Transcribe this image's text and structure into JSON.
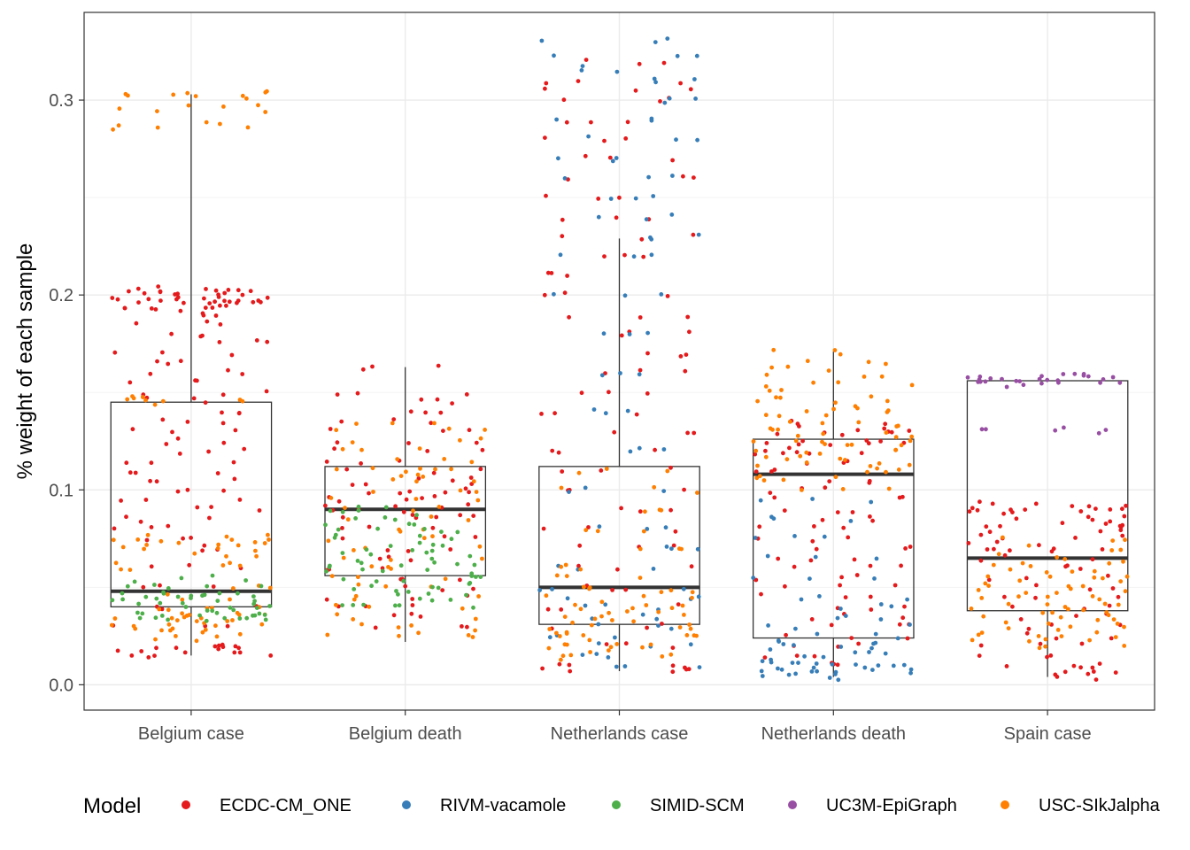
{
  "chart_data": {
    "type": "box-jitter",
    "ylabel": "% weight of each sample",
    "xlabel": "",
    "ylim": [
      -0.013,
      0.345
    ],
    "y_ticks": [
      0.0,
      0.1,
      0.2,
      0.3
    ],
    "y_tick_labels": [
      "0.0",
      "0.1",
      "0.2",
      "0.3"
    ],
    "grid": true,
    "categories": [
      "Belgium case",
      "Belgium death",
      "Netherlands case",
      "Netherlands death",
      "Spain case"
    ],
    "boxes": [
      {
        "category": "Belgium case",
        "min": 0.015,
        "q1": 0.04,
        "median": 0.048,
        "q3": 0.145,
        "max": 0.303
      },
      {
        "category": "Belgium death",
        "min": 0.022,
        "q1": 0.056,
        "median": 0.09,
        "q3": 0.112,
        "max": 0.163
      },
      {
        "category": "Netherlands case",
        "min": 0.007,
        "q1": 0.031,
        "median": 0.05,
        "q3": 0.112,
        "max": 0.229
      },
      {
        "category": "Netherlands death",
        "min": 0.004,
        "q1": 0.024,
        "median": 0.108,
        "q3": 0.126,
        "max": 0.171
      },
      {
        "category": "Spain case",
        "min": 0.004,
        "q1": 0.038,
        "median": 0.065,
        "q3": 0.156,
        "max": 0.156
      }
    ],
    "legend": {
      "title": "Model",
      "position": "bottom",
      "entries": [
        {
          "name": "ECDC-CM_ONE",
          "color": "#E41A1C"
        },
        {
          "name": "RIVM-vacamole",
          "color": "#377EB8"
        },
        {
          "name": "SIMID-SCM",
          "color": "#4DAF4A"
        },
        {
          "name": "UC3M-EpiGraph",
          "color": "#984EA3"
        },
        {
          "name": "USC-SIkJalpha",
          "color": "#FF7F00"
        }
      ]
    },
    "point_groups": [
      {
        "category": "Belgium case",
        "model": "ECDC-CM_ONE",
        "values": [
          0.19,
          0.192,
          0.194,
          0.195,
          0.196,
          0.197,
          0.198,
          0.199,
          0.2,
          0.201,
          0.202,
          0.203,
          0.193,
          0.196,
          0.199,
          0.201,
          0.186,
          0.18,
          0.176,
          0.17,
          0.165,
          0.16,
          0.155,
          0.15,
          0.146,
          0.14,
          0.135,
          0.13,
          0.125,
          0.12,
          0.115,
          0.11,
          0.105,
          0.1,
          0.095,
          0.09,
          0.085,
          0.08,
          0.075,
          0.07,
          0.06,
          0.05,
          0.04,
          0.03,
          0.02,
          0.016,
          0.018,
          0.015,
          0.017,
          0.019
        ]
      },
      {
        "category": "Belgium case",
        "model": "USC-SIkJalpha",
        "values": [
          0.304,
          0.303,
          0.302,
          0.296,
          0.295,
          0.288,
          0.286,
          0.147,
          0.145,
          0.146,
          0.076,
          0.075,
          0.074,
          0.073,
          0.072,
          0.07,
          0.066,
          0.062,
          0.06,
          0.05,
          0.045,
          0.04,
          0.038,
          0.036,
          0.035,
          0.034,
          0.033,
          0.032,
          0.031,
          0.03,
          0.028,
          0.026,
          0.024
        ]
      },
      {
        "category": "Belgium case",
        "model": "SIMID-SCM",
        "values": [
          0.055,
          0.052,
          0.05,
          0.048,
          0.046,
          0.045,
          0.044,
          0.043,
          0.042,
          0.041,
          0.04,
          0.039,
          0.038,
          0.037,
          0.036,
          0.035,
          0.034,
          0.033
        ]
      },
      {
        "category": "Belgium death",
        "model": "ECDC-CM_ONE",
        "values": [
          0.163,
          0.15,
          0.145,
          0.14,
          0.135,
          0.13,
          0.125,
          0.12,
          0.115,
          0.11,
          0.105,
          0.102,
          0.1,
          0.098,
          0.096,
          0.094,
          0.092,
          0.09,
          0.088,
          0.085,
          0.08,
          0.075,
          0.07,
          0.065,
          0.06,
          0.055,
          0.05,
          0.045,
          0.04,
          0.035,
          0.03
        ]
      },
      {
        "category": "Belgium death",
        "model": "USC-SIkJalpha",
        "values": [
          0.135,
          0.13,
          0.125,
          0.12,
          0.115,
          0.112,
          0.11,
          0.108,
          0.105,
          0.1,
          0.095,
          0.09,
          0.085,
          0.08,
          0.075,
          0.07,
          0.065,
          0.06,
          0.055,
          0.05,
          0.045,
          0.04,
          0.035,
          0.03,
          0.027,
          0.025
        ]
      },
      {
        "category": "Belgium death",
        "model": "SIMID-SCM",
        "values": [
          0.09,
          0.088,
          0.085,
          0.082,
          0.08,
          0.078,
          0.075,
          0.072,
          0.07,
          0.068,
          0.066,
          0.064,
          0.062,
          0.06,
          0.058,
          0.056,
          0.054,
          0.052,
          0.05,
          0.048,
          0.046,
          0.044,
          0.042,
          0.04
        ]
      },
      {
        "category": "Netherlands case",
        "model": "ECDC-CM_ONE",
        "values": [
          0.32,
          0.31,
          0.305,
          0.3,
          0.29,
          0.28,
          0.27,
          0.26,
          0.25,
          0.24,
          0.23,
          0.22,
          0.21,
          0.2,
          0.19,
          0.18,
          0.17,
          0.16,
          0.15,
          0.14,
          0.13,
          0.12,
          0.11,
          0.1,
          0.09,
          0.08,
          0.07,
          0.06,
          0.05,
          0.04,
          0.03,
          0.02,
          0.01,
          0.008,
          0.007
        ]
      },
      {
        "category": "Netherlands case",
        "model": "RIVM-vacamole",
        "values": [
          0.331,
          0.323,
          0.316,
          0.31,
          0.3,
          0.29,
          0.28,
          0.27,
          0.26,
          0.25,
          0.24,
          0.23,
          0.22,
          0.2,
          0.18,
          0.16,
          0.14,
          0.12,
          0.1,
          0.08,
          0.07,
          0.06,
          0.05,
          0.045,
          0.04,
          0.035,
          0.03,
          0.025,
          0.02,
          0.015,
          0.01
        ]
      },
      {
        "category": "Netherlands case",
        "model": "USC-SIkJalpha",
        "values": [
          0.11,
          0.1,
          0.09,
          0.08,
          0.07,
          0.06,
          0.055,
          0.05,
          0.048,
          0.045,
          0.042,
          0.04,
          0.038,
          0.036,
          0.034,
          0.032,
          0.03,
          0.028,
          0.026,
          0.024,
          0.022,
          0.02,
          0.018,
          0.016,
          0.014
        ]
      },
      {
        "category": "Netherlands death",
        "model": "ECDC-CM_ONE",
        "values": [
          0.135,
          0.132,
          0.13,
          0.128,
          0.126,
          0.124,
          0.122,
          0.12,
          0.118,
          0.115,
          0.11,
          0.105,
          0.1,
          0.095,
          0.09,
          0.085,
          0.08,
          0.075,
          0.07,
          0.065,
          0.06,
          0.055,
          0.05,
          0.045,
          0.04,
          0.035,
          0.03,
          0.025,
          0.02,
          0.015,
          0.01
        ]
      },
      {
        "category": "Netherlands death",
        "model": "USC-SIkJalpha",
        "values": [
          0.171,
          0.166,
          0.162,
          0.158,
          0.155,
          0.152,
          0.148,
          0.145,
          0.142,
          0.14,
          0.138,
          0.135,
          0.132,
          0.13,
          0.128,
          0.126,
          0.124,
          0.122,
          0.12,
          0.118,
          0.116,
          0.114,
          0.112,
          0.11,
          0.108,
          0.105,
          0.1
        ]
      },
      {
        "category": "Netherlands death",
        "model": "RIVM-vacamole",
        "values": [
          0.095,
          0.085,
          0.075,
          0.065,
          0.055,
          0.045,
          0.04,
          0.035,
          0.03,
          0.025,
          0.022,
          0.02,
          0.018,
          0.016,
          0.014,
          0.012,
          0.011,
          0.01,
          0.009,
          0.008,
          0.007,
          0.006,
          0.005,
          0.004
        ]
      },
      {
        "category": "Spain case",
        "model": "UC3M-EpiGraph",
        "values": [
          0.159,
          0.158,
          0.1575,
          0.157,
          0.1565,
          0.156,
          0.1555,
          0.155,
          0.154,
          0.131,
          0.13
        ]
      },
      {
        "category": "Spain case",
        "model": "ECDC-CM_ONE",
        "values": [
          0.093,
          0.092,
          0.091,
          0.09,
          0.089,
          0.088,
          0.086,
          0.084,
          0.082,
          0.08,
          0.078,
          0.075,
          0.072,
          0.07,
          0.068,
          0.065,
          0.06,
          0.055,
          0.05,
          0.045,
          0.04,
          0.035,
          0.03,
          0.025,
          0.02,
          0.015,
          0.01,
          0.008,
          0.006,
          0.004
        ]
      },
      {
        "category": "Spain case",
        "model": "USC-SIkJalpha",
        "values": [
          0.075,
          0.07,
          0.066,
          0.063,
          0.06,
          0.058,
          0.056,
          0.054,
          0.052,
          0.05,
          0.048,
          0.046,
          0.044,
          0.042,
          0.04,
          0.038,
          0.036,
          0.034,
          0.032,
          0.03,
          0.028,
          0.026,
          0.024,
          0.022,
          0.02
        ]
      }
    ]
  }
}
